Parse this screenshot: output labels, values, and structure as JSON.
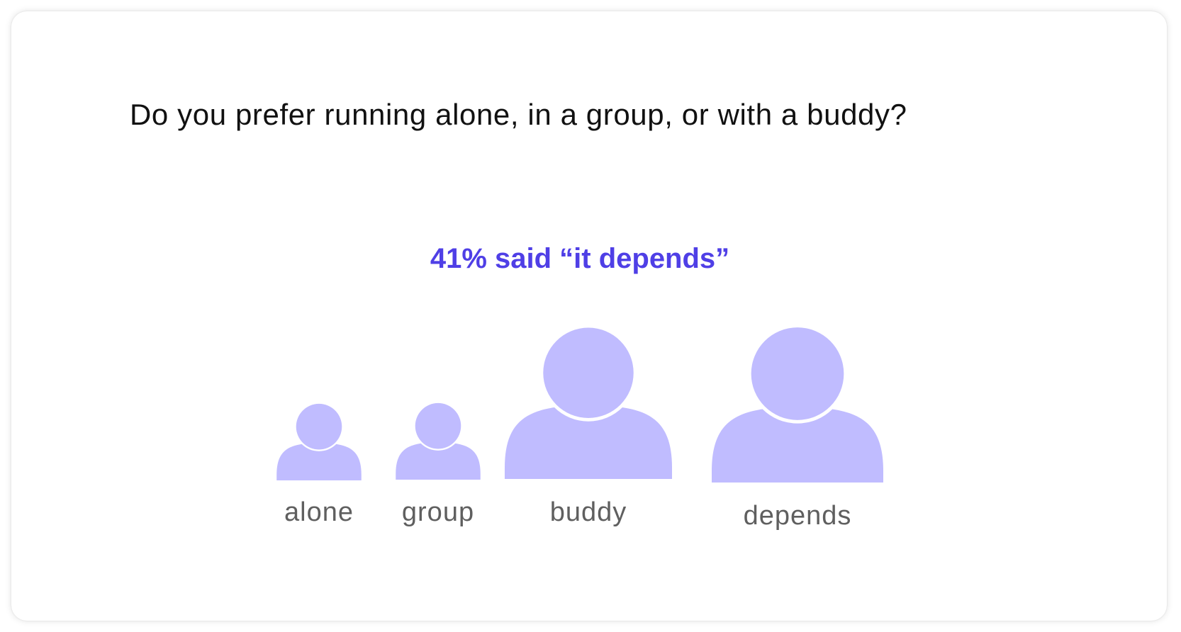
{
  "question": "Do you prefer running alone, in a group, or with a buddy?",
  "headline": "41% said “it depends”",
  "colors": {
    "icon": "#c0bcff",
    "headline": "#4f3fe6",
    "label": "#5f5f5f"
  },
  "icon_name": "person-icon",
  "chart_data": {
    "type": "pictograph",
    "categories": [
      "alone",
      "group",
      "buddy",
      "depends"
    ],
    "values": [
      10,
      10,
      39,
      41
    ]
  }
}
